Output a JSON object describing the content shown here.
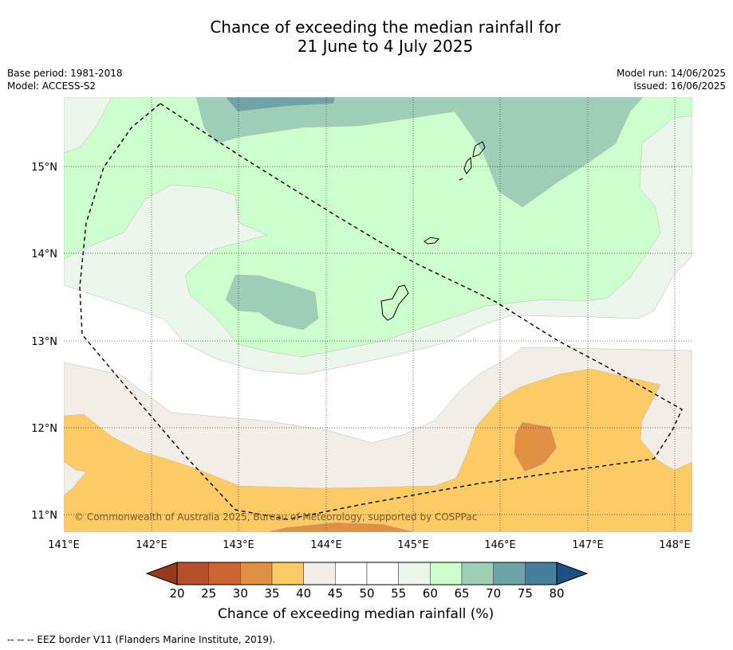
{
  "title": {
    "line1": "Chance of exceeding the median rainfall for",
    "line2": "21 June to 4 July 2025"
  },
  "meta": {
    "base_period": "Base period: 1981-2018",
    "model": "Model: ACCESS-S2",
    "model_run": "Model run: 14/06/2025",
    "issued": "Issued: 16/06/2025"
  },
  "axes": {
    "x_ticks": [
      "141°E",
      "142°E",
      "143°E",
      "144°E",
      "145°E",
      "146°E",
      "147°E",
      "148°E"
    ],
    "y_ticks": [
      "15°N",
      "14°N",
      "13°N",
      "12°N",
      "11°N"
    ]
  },
  "copyright": "© Commonwealth of Australia 2025, Bureau of Meteorology, supported by COSPPac",
  "colorbar": {
    "label": "Chance of exceeding median rainfall (%)",
    "ticks": [
      "20",
      "25",
      "30",
      "35",
      "40",
      "45",
      "50",
      "55",
      "60",
      "65",
      "70",
      "75",
      "80"
    ],
    "colors": [
      "#b5502b",
      "#cc6633",
      "#e09040",
      "#fdcb65",
      "#f2ede6",
      "#ffffff",
      "#ffffff",
      "#ebf5eb",
      "#ccffcc",
      "#9dcfb8",
      "#6ea3a8",
      "#457f9a"
    ],
    "under_color": "#96391c",
    "over_color": "#1d4f85"
  },
  "footnote": "--  --  -- EEZ border V11 (Flanders Marine Institute, 2019)."
}
